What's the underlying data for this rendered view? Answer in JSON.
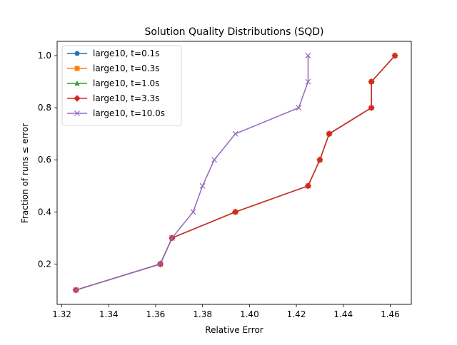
{
  "chart_data": {
    "type": "line",
    "title": "Solution Quality Distributions (SQD)",
    "xlabel": "Relative Error",
    "ylabel": "Fraction of runs ≤ error",
    "xlim": [
      1.318,
      1.469
    ],
    "ylim": [
      0.045,
      1.055
    ],
    "xticks": [
      1.32,
      1.34,
      1.36,
      1.38,
      1.4,
      1.42,
      1.44,
      1.46
    ],
    "xtick_labels": [
      "1.32",
      "1.34",
      "1.36",
      "1.38",
      "1.40",
      "1.42",
      "1.44",
      "1.46"
    ],
    "yticks": [
      0.2,
      0.4,
      0.6,
      0.8,
      1.0
    ],
    "ytick_labels": [
      "0.2",
      "0.4",
      "0.6",
      "0.8",
      "1.0"
    ],
    "grid": false,
    "legend_position": "upper-left",
    "series": [
      {
        "name": "large10, t=0.1s",
        "color": "#1f77b4",
        "marker": "circle",
        "x": [
          1.326,
          1.362,
          1.367,
          1.394,
          1.425,
          1.43,
          1.434,
          1.452,
          1.452,
          1.462
        ],
        "y": [
          0.1,
          0.2,
          0.3,
          0.4,
          0.5,
          0.6,
          0.7,
          0.8,
          0.9,
          1.0
        ]
      },
      {
        "name": "large10, t=0.3s",
        "color": "#ff7f0e",
        "marker": "square",
        "x": [
          1.326,
          1.362,
          1.367,
          1.394,
          1.425,
          1.43,
          1.434,
          1.452,
          1.452,
          1.462
        ],
        "y": [
          0.1,
          0.2,
          0.3,
          0.4,
          0.5,
          0.6,
          0.7,
          0.8,
          0.9,
          1.0
        ]
      },
      {
        "name": "large10, t=1.0s",
        "color": "#2ca02c",
        "marker": "triangle",
        "x": [
          1.326,
          1.362,
          1.367,
          1.394,
          1.425,
          1.43,
          1.434,
          1.452,
          1.452,
          1.462
        ],
        "y": [
          0.1,
          0.2,
          0.3,
          0.4,
          0.5,
          0.6,
          0.7,
          0.8,
          0.9,
          1.0
        ]
      },
      {
        "name": "large10, t=3.3s",
        "color": "#d62728",
        "marker": "diamond",
        "x": [
          1.326,
          1.362,
          1.367,
          1.394,
          1.425,
          1.43,
          1.434,
          1.452,
          1.452,
          1.462
        ],
        "y": [
          0.1,
          0.2,
          0.3,
          0.4,
          0.5,
          0.6,
          0.7,
          0.8,
          0.9,
          1.0
        ]
      },
      {
        "name": "large10, t=10.0s",
        "color": "#9467bd",
        "marker": "x",
        "x": [
          1.326,
          1.362,
          1.367,
          1.376,
          1.38,
          1.385,
          1.394,
          1.421,
          1.425,
          1.425
        ],
        "y": [
          0.1,
          0.2,
          0.3,
          0.4,
          0.5,
          0.6,
          0.7,
          0.8,
          0.9,
          1.0
        ]
      }
    ]
  }
}
